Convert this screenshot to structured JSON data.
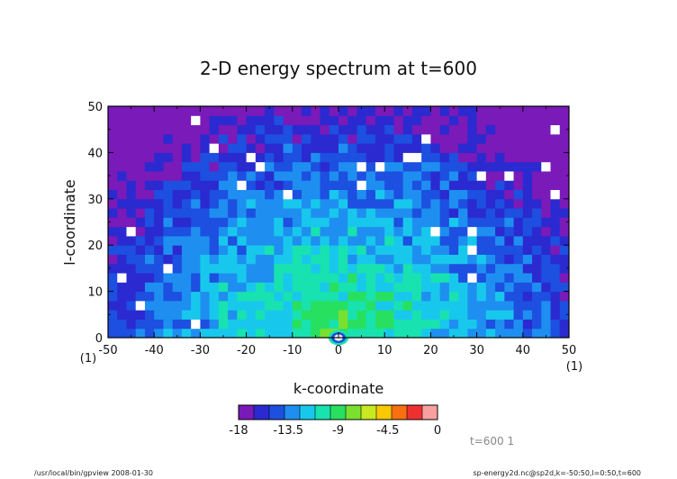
{
  "chart_data": {
    "type": "heatmap",
    "title": "2-D energy spectrum at t=600",
    "xlabel": "k-coordinate",
    "ylabel": "l-coordinate",
    "xlim": [
      -50,
      50
    ],
    "ylim": [
      0,
      50
    ],
    "x_ticks": [
      "-50",
      "-40",
      "-30",
      "-20",
      "-10",
      "0",
      "10",
      "20",
      "30",
      "40",
      "50"
    ],
    "y_ticks": [
      "0",
      "10",
      "20",
      "30",
      "40",
      "50"
    ],
    "x_unit": "(1)",
    "y_unit": "(1)",
    "colorbar": {
      "levels": [
        -18,
        -16.5,
        -15,
        -13.5,
        -12,
        -10.5,
        -9,
        -7.5,
        -6,
        -4.5,
        -3,
        -1.5,
        0
      ],
      "tick_labels": [
        "-18",
        "-13.5",
        "-9",
        "-4.5",
        "0"
      ],
      "colors": [
        "#7a1ab8",
        "#2a2ad0",
        "#1d4fe0",
        "#1e8ff0",
        "#18c8ec",
        "#18e2b0",
        "#28e060",
        "#7ae030",
        "#c8e820",
        "#f8c800",
        "#f87010",
        "#f03030",
        "#f8a0a0"
      ]
    },
    "field_description": "log energy, highest near (0,0) decaying outward; peak at origin",
    "annotation": "t=600 1"
  },
  "footer": {
    "left": "/usr/local/bin/gpview   2008-01-30",
    "right": "sp-energy2d.nc@sp2d,k=-50:50,l=0:50,t=600"
  }
}
